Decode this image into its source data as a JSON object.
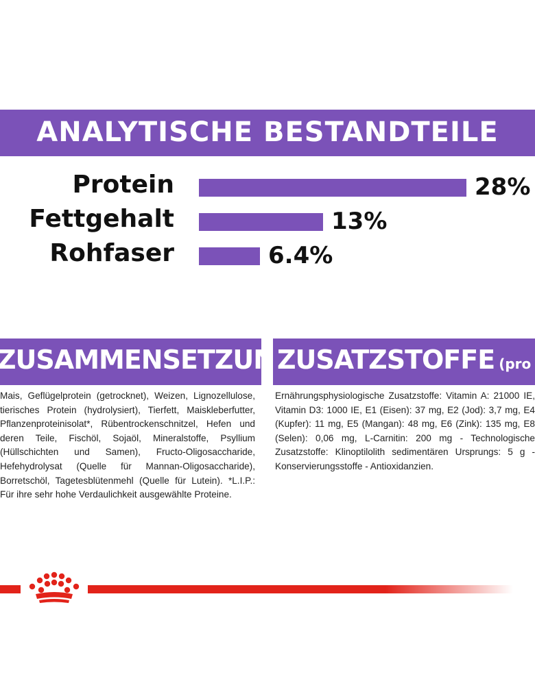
{
  "analysis": {
    "title": "ANALYTISCHE BESTANDTEILE",
    "rows": [
      {
        "label": "Protein",
        "value_text": "28%",
        "value": 28
      },
      {
        "label": "Fettgehalt",
        "value_text": "13%",
        "value": 13
      },
      {
        "label": "Rohfaser",
        "value_text": "6.4%",
        "value": 6.4
      }
    ]
  },
  "composition": {
    "title": "ZUSAMMENSETZUNG",
    "text": "Mais, Geflügelprotein (getrocknet), Weizen, Lignozellulose, tierisches Protein (hydrolysiert), Tierfett, Maiskleberfutter, Pflanzenproteinisolat*, Rübentrockenschnitzel, Hefen und deren Teile, Fischöl, Sojaöl, Mineralstoffe, Psyllium (Hüllschichten und Samen), Fructo-Oligosaccharide, Hefehydrolysat (Quelle für Mannan-Oligosaccharide), Borretschöl, Tagetesblütenmehl (Quelle für Lutein). *L.I.P.: Für ihre sehr hohe Verdaulichkeit ausgewählte Proteine."
  },
  "additives": {
    "title": "ZUSATZSTOFFE",
    "subtitle": "(pro kg)",
    "text": "Ernährungsphysiologische Zusatzstoffe: Vitamin A: 21000 IE, Vitamin D3: 1000 IE, E1 (Eisen): 37 mg, E2 (Jod): 3,7 mg, E4 (Kupfer): 11 mg, E5 (Mangan): 48 mg, E6 (Zink): 135 mg, E8 (Selen): 0,06 mg, L-Carnitin: 200 mg - Technologische Zusatzstoffe: Klinoptilolith sedimentären Ursprungs: 5 g - Konservierungsstoffe - Antioxidanzien."
  },
  "colors": {
    "accent": "#7b52b8",
    "brand_red": "#e2231a"
  },
  "icons": {
    "brand_logo": "royal-canin-crown-icon"
  }
}
